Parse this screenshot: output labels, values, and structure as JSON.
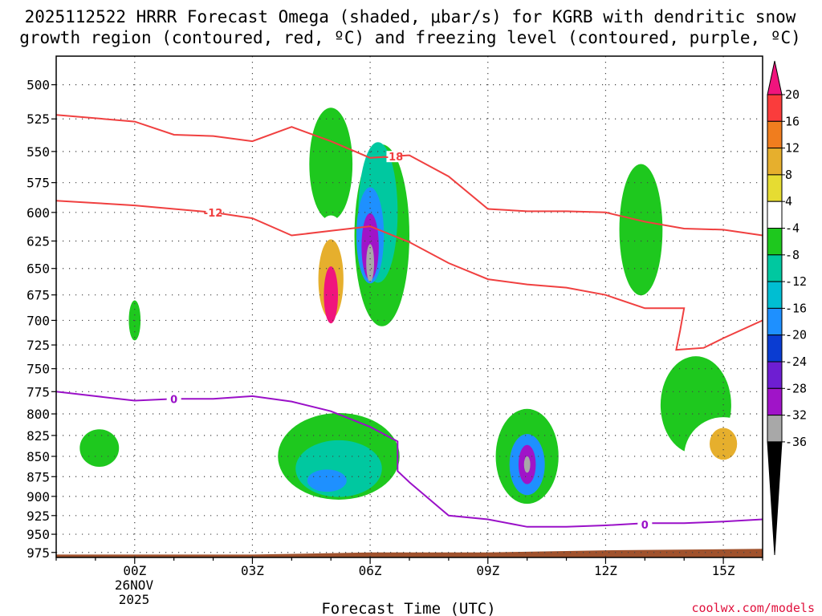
{
  "chart_data": {
    "type": "heatmap",
    "title_line1": "2025112522 HRRR Forecast Omega (shaded, μbar/s) for KGRB with dendritic snow",
    "title_line2": "growth region (contoured, red, ºC) and freezing level (contoured, purple, ºC)",
    "xlabel": "Forecast Time (UTC)",
    "credit": "coolwx.com/models",
    "x_range_hours": [
      -2,
      16
    ],
    "y_range_hpa": [
      480,
      982
    ],
    "y_ticks": [
      500,
      525,
      550,
      575,
      600,
      625,
      650,
      675,
      700,
      725,
      750,
      775,
      800,
      825,
      850,
      875,
      900,
      925,
      950,
      975
    ],
    "x_ticks": [
      {
        "hour": 0,
        "label": "00Z"
      },
      {
        "hour": 3,
        "label": "03Z"
      },
      {
        "hour": 6,
        "label": "06Z"
      },
      {
        "hour": 9,
        "label": "09Z"
      },
      {
        "hour": 12,
        "label": "12Z"
      },
      {
        "hour": 15,
        "label": "15Z"
      }
    ],
    "date_label": [
      "26NOV",
      "2025"
    ],
    "colorbar": {
      "labels": [
        "20",
        "16",
        "12",
        "8",
        "4",
        "-4",
        "-8",
        "-12",
        "-16",
        "-20",
        "-24",
        "-28",
        "-32",
        "-36"
      ],
      "colors": [
        "#fa3c3c",
        "#f07d1e",
        "#e6af2d",
        "#e6dc32",
        "#ffffff",
        "#1ec81e",
        "#00c8a0",
        "#00bed2",
        "#1e90ff",
        "#0a3cd2",
        "#6e1ed2",
        "#a014c8",
        "#a8a8a8"
      ],
      "top_color": "#f0147d",
      "bottom_color": "#000000",
      "blank_label": "4"
    },
    "omega_features": [
      {
        "name": "green-column-03z",
        "level": -4,
        "center": [
          5.0,
          560
        ],
        "size": [
          0.55,
          90
        ]
      },
      {
        "name": "green-column-06z",
        "level": -4,
        "center": [
          6.3,
          620
        ],
        "size": [
          0.7,
          160
        ]
      },
      {
        "name": "teal-core-06z",
        "level": -8,
        "center": [
          6.2,
          600
        ],
        "size": [
          0.5,
          120
        ]
      },
      {
        "name": "blue-core-06z",
        "level": -16,
        "center": [
          6.0,
          620
        ],
        "size": [
          0.35,
          85
        ]
      },
      {
        "name": "purple-core-06z",
        "level": -28,
        "center": [
          6.0,
          630
        ],
        "size": [
          0.22,
          60
        ]
      },
      {
        "name": "grey-core-06z",
        "level": -32,
        "center": [
          6.0,
          645
        ],
        "size": [
          0.1,
          35
        ]
      },
      {
        "name": "yellow-lobe-05z",
        "level": 4,
        "center": [
          5.0,
          660
        ],
        "size": [
          0.55,
          120
        ]
      },
      {
        "name": "orange-lobe-05z",
        "level": 12,
        "center": [
          5.0,
          660
        ],
        "size": [
          0.32,
          75
        ]
      },
      {
        "name": "magenta-lobe-05z",
        "level": 20,
        "center": [
          5.0,
          675
        ],
        "size": [
          0.18,
          55
        ]
      },
      {
        "name": "green-slab-low",
        "level": -4,
        "center": [
          5.2,
          850
        ],
        "size": [
          1.55,
          105
        ]
      },
      {
        "name": "teal-slab-low",
        "level": -8,
        "center": [
          5.2,
          865
        ],
        "size": [
          1.1,
          70
        ]
      },
      {
        "name": "blue-slab-low",
        "level": -16,
        "center": [
          4.9,
          880
        ],
        "size": [
          0.5,
          28
        ]
      },
      {
        "name": "green-column-10z",
        "level": -4,
        "center": [
          10.0,
          850
        ],
        "size": [
          0.8,
          115
        ]
      },
      {
        "name": "blue-core-10z",
        "level": -16,
        "center": [
          10.0,
          860
        ],
        "size": [
          0.45,
          75
        ]
      },
      {
        "name": "purple-core-10z",
        "level": -28,
        "center": [
          10.0,
          860
        ],
        "size": [
          0.22,
          48
        ]
      },
      {
        "name": "grey-core-10z",
        "level": -32,
        "center": [
          10.0,
          860
        ],
        "size": [
          0.08,
          20
        ]
      },
      {
        "name": "green-column-13z",
        "level": -4,
        "center": [
          12.9,
          615
        ],
        "size": [
          0.55,
          115
        ]
      },
      {
        "name": "green-slab-14z",
        "level": -4,
        "center": [
          14.3,
          790
        ],
        "size": [
          0.9,
          110
        ]
      },
      {
        "name": "yellow-lobe-15z",
        "level": 4,
        "center": [
          15.0,
          850
        ],
        "size": [
          1.0,
          95
        ]
      },
      {
        "name": "orange-lobe-15z",
        "level": 12,
        "center": [
          15.0,
          835
        ],
        "size": [
          0.35,
          38
        ]
      },
      {
        "name": "yellow-streak-02z",
        "level": 4,
        "center": [
          2.0,
          540
        ],
        "size": [
          0.35,
          75
        ]
      },
      {
        "name": "green-blob-00z",
        "level": -4,
        "center": [
          0.0,
          700
        ],
        "size": [
          0.15,
          40
        ]
      },
      {
        "name": "green-blob-lowleft",
        "level": -4,
        "center": [
          -0.9,
          840
        ],
        "size": [
          0.5,
          45
        ]
      }
    ],
    "dgz_top_isotherm": {
      "label": "-18",
      "label_at": [
        6.6,
        554
      ],
      "points": [
        [
          -2,
          522
        ],
        [
          0,
          527
        ],
        [
          1,
          537
        ],
        [
          2,
          538
        ],
        [
          3,
          542
        ],
        [
          4,
          531
        ],
        [
          5,
          542
        ],
        [
          6,
          555
        ],
        [
          7,
          553
        ],
        [
          8,
          570
        ],
        [
          9,
          597
        ],
        [
          10,
          599
        ],
        [
          11,
          599
        ],
        [
          12,
          600
        ],
        [
          13,
          608
        ],
        [
          14,
          614
        ],
        [
          15,
          615
        ],
        [
          16,
          620
        ]
      ]
    },
    "dgz_bottom_isotherm": {
      "label": "-12",
      "label_at": [
        2.0,
        600
      ],
      "points": [
        [
          -2,
          590
        ],
        [
          -1,
          592
        ],
        [
          0,
          594
        ],
        [
          1,
          597
        ],
        [
          2,
          600
        ],
        [
          3,
          605
        ],
        [
          4,
          620
        ],
        [
          5,
          616
        ],
        [
          6,
          612
        ],
        [
          7,
          626
        ],
        [
          8,
          645
        ],
        [
          9,
          660
        ],
        [
          10,
          665
        ],
        [
          11,
          668
        ],
        [
          12,
          675
        ],
        [
          13,
          688
        ],
        [
          14,
          688
        ],
        [
          13.9,
          710
        ],
        [
          13.8,
          730
        ],
        [
          14.5,
          728
        ],
        [
          15,
          718
        ],
        [
          16,
          700
        ]
      ]
    },
    "freezing_level": {
      "label": "0",
      "label_at": [
        1.0,
        783
      ],
      "label2_at": [
        13.0,
        937
      ],
      "points": [
        [
          -2,
          775
        ],
        [
          -1,
          780
        ],
        [
          0,
          785
        ],
        [
          1,
          783
        ],
        [
          2,
          783
        ],
        [
          3,
          780
        ],
        [
          4,
          786
        ],
        [
          5,
          797
        ],
        [
          6,
          815
        ],
        [
          6.7,
          832
        ],
        [
          6.7,
          868
        ],
        [
          7,
          882
        ],
        [
          8,
          925
        ],
        [
          9,
          930
        ],
        [
          10,
          940
        ],
        [
          11,
          940
        ],
        [
          12,
          938
        ],
        [
          13,
          935
        ],
        [
          14,
          935
        ],
        [
          15,
          933
        ],
        [
          16,
          930
        ]
      ]
    },
    "terrain": {
      "color": "#a0522d",
      "points": [
        [
          -2,
          978
        ],
        [
          3,
          978
        ],
        [
          6,
          975
        ],
        [
          9,
          975
        ],
        [
          12,
          972
        ],
        [
          16,
          970
        ]
      ]
    }
  }
}
